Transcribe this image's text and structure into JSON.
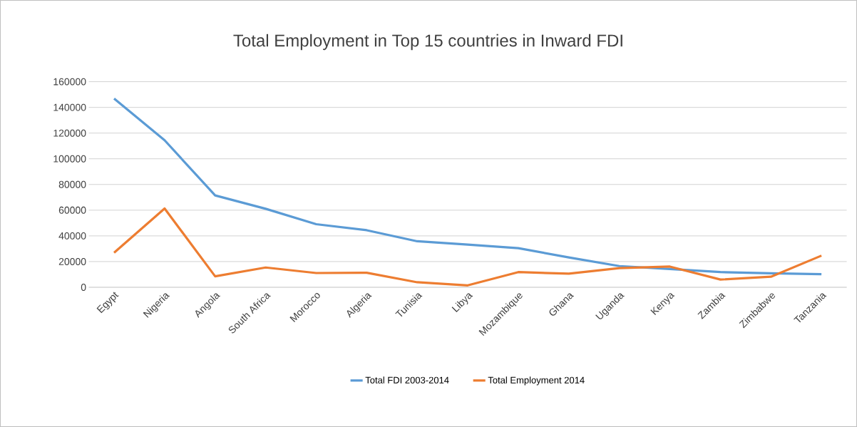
{
  "chart_data": {
    "type": "line",
    "title": "Total Employment in Top 15 countries in Inward FDI",
    "categories": [
      "Egypt",
      "Nigeria",
      "Angola",
      "South Africa",
      "Morocco",
      "Algeria",
      "Tunisia",
      "Libya",
      "Mozambique",
      "Ghana",
      "Uganda",
      "Kenya",
      "Zambia",
      "Zimbabwe",
      "Tanzania"
    ],
    "series": [
      {
        "name": "Total FDI 2003-2014",
        "color": "#5b9bd5",
        "values": [
          146900,
          114400,
          71500,
          61100,
          49100,
          44400,
          35800,
          33200,
          30400,
          23200,
          16500,
          14200,
          11800,
          10900,
          10200
        ]
      },
      {
        "name": "Total Employment 2014",
        "color": "#ed7d31",
        "values": [
          26900,
          61300,
          8500,
          15400,
          11100,
          11300,
          3900,
          1500,
          11800,
          10600,
          14900,
          16100,
          6000,
          8200,
          24600
        ]
      }
    ],
    "ylim": [
      0,
      160000
    ],
    "yticks": [
      0,
      20000,
      40000,
      60000,
      80000,
      100000,
      120000,
      140000,
      160000
    ],
    "grid": "y",
    "legend": "bottom",
    "marker": "none",
    "line_style": "solid"
  }
}
